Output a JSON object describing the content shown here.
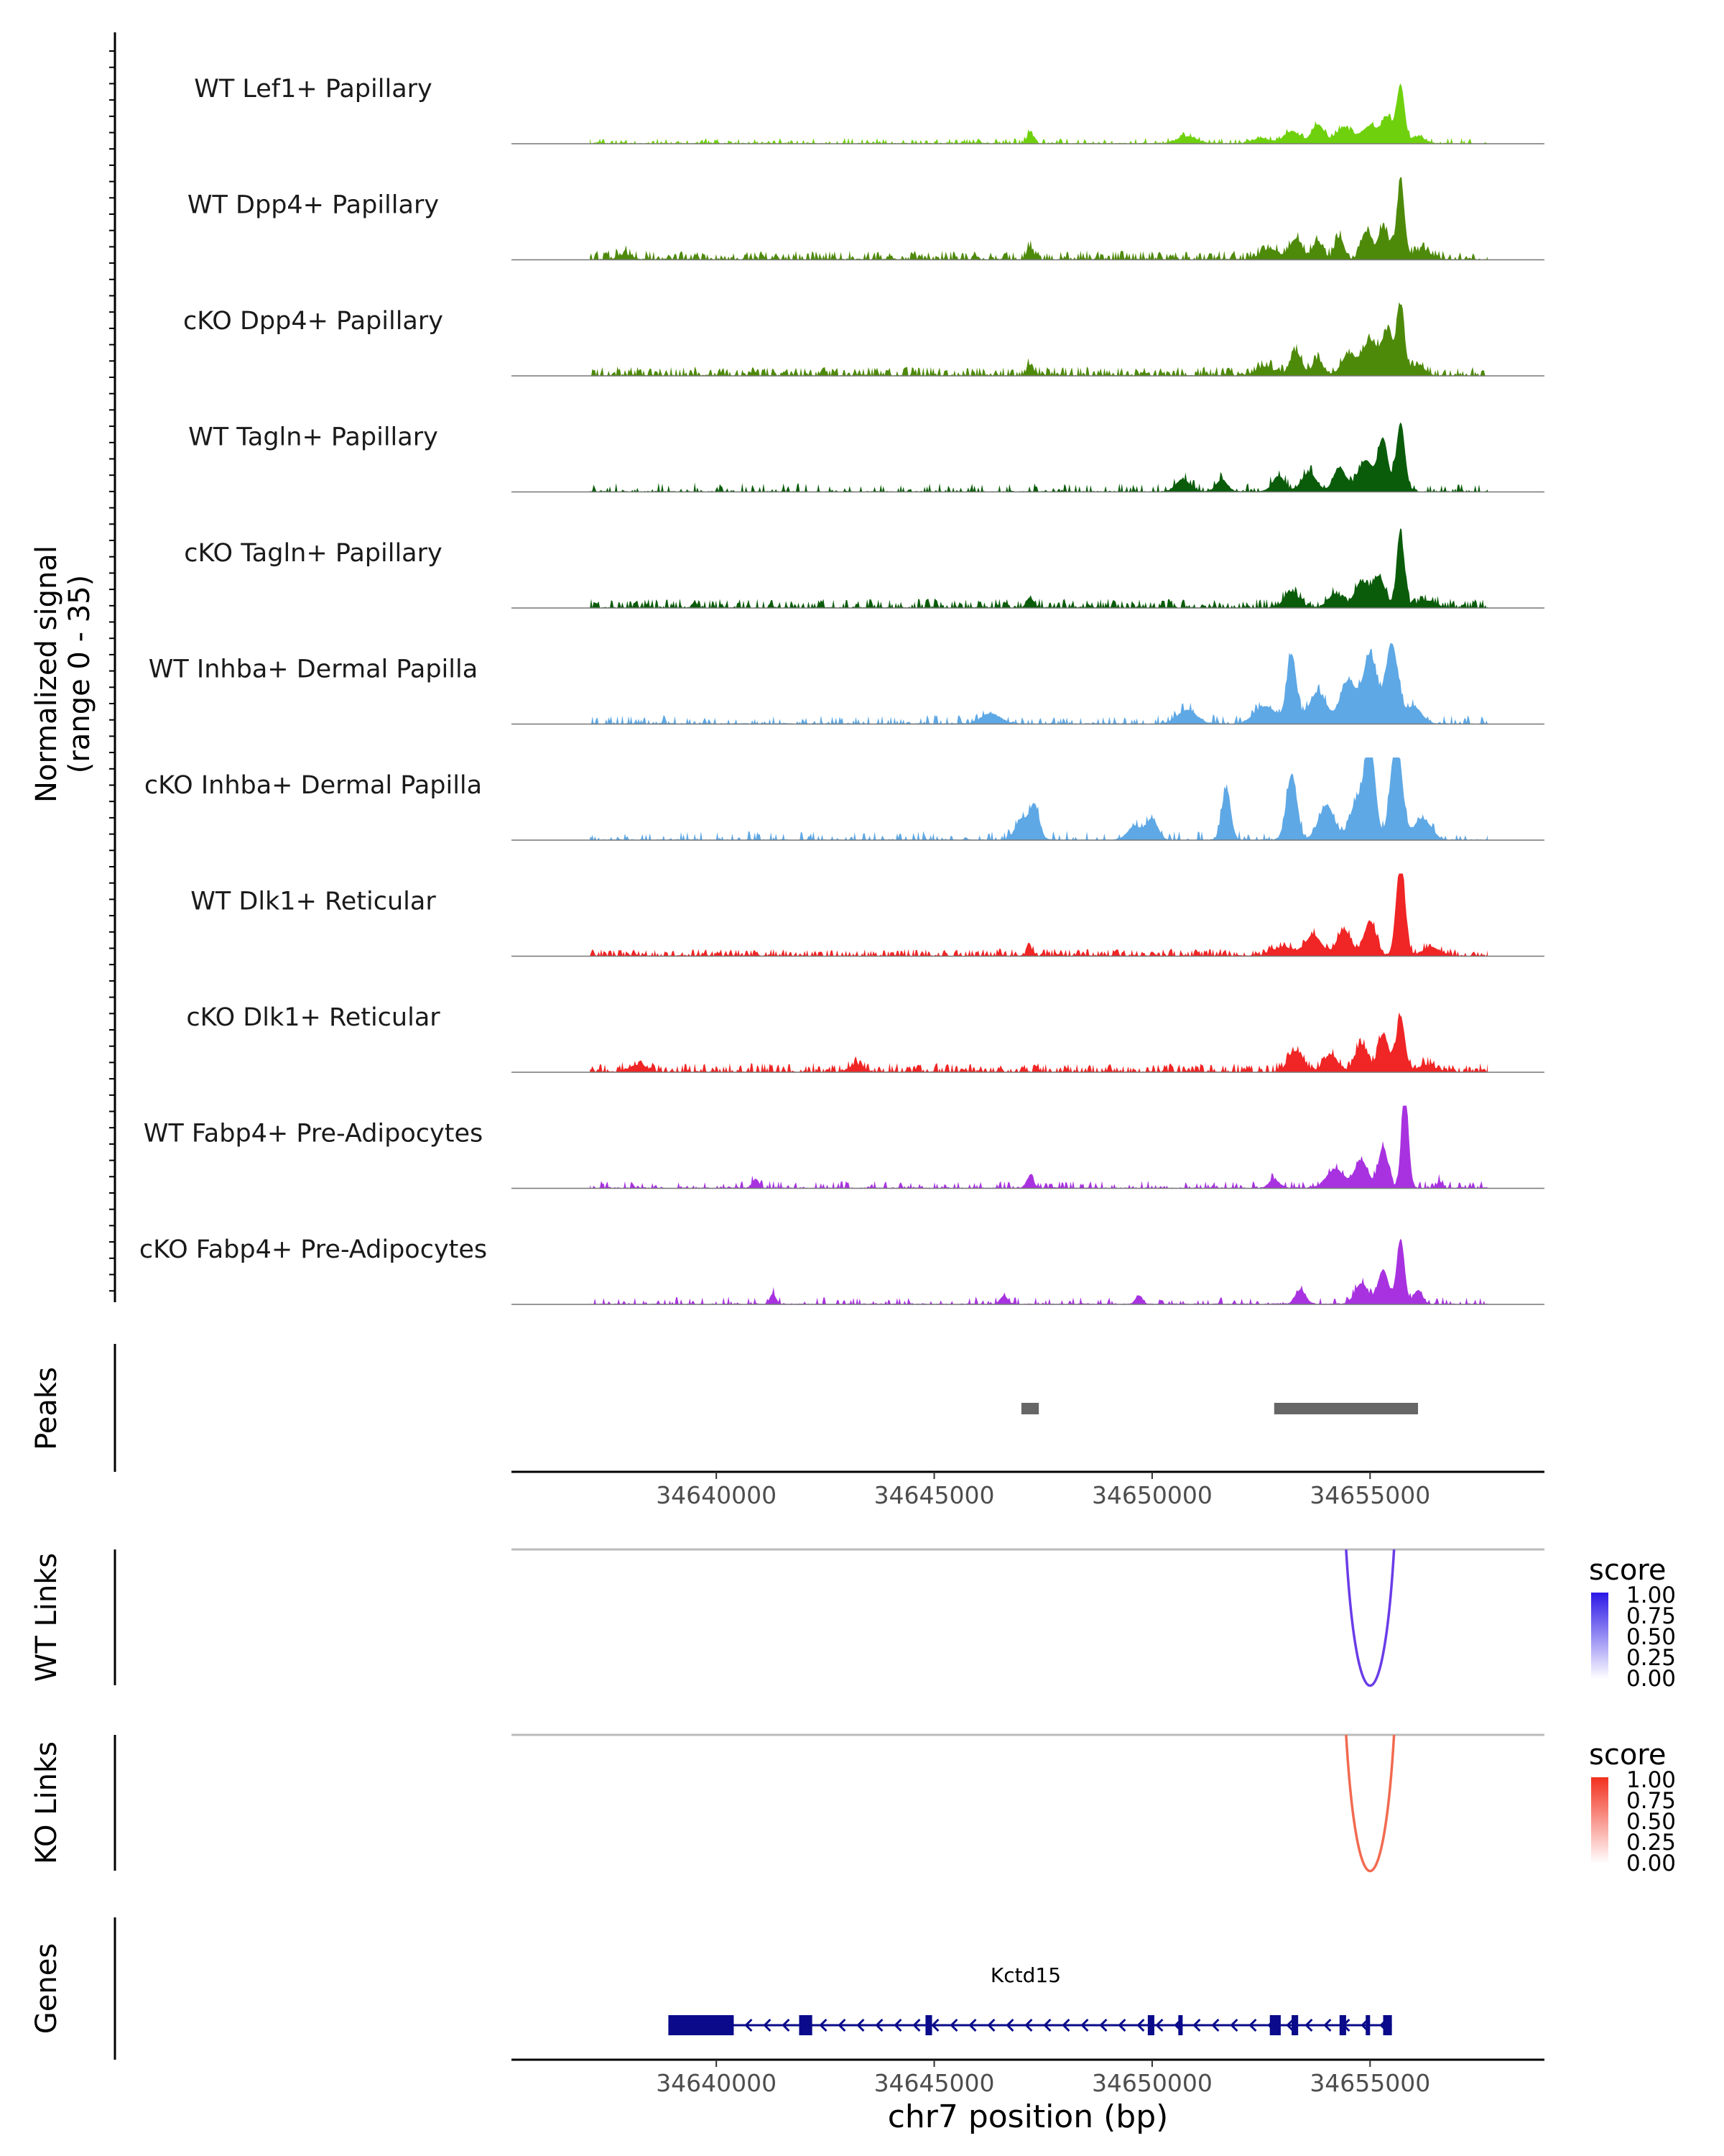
{
  "chart_data": {
    "type": "area",
    "title": "",
    "region": {
      "chrom": "chr7",
      "start": 34635300,
      "end": 34659000
    },
    "coverage_ylabel": "Normalized signal",
    "coverage_range_label": "(range 0 - 35)",
    "coverage_ylim": [
      0,
      35
    ],
    "tracks": [
      {
        "name": "WT Lef1+ Papillary",
        "color": "#6FD10D",
        "noise": 0.35,
        "base": 3,
        "peaks": [
          [
            34647200,
            7,
            70
          ],
          [
            34650800,
            4,
            220
          ],
          [
            34652500,
            3,
            200
          ],
          [
            34653200,
            7,
            180
          ],
          [
            34653800,
            11,
            140
          ],
          [
            34654400,
            9,
            180
          ],
          [
            34655000,
            10,
            200
          ],
          [
            34655400,
            14,
            120
          ],
          [
            34655700,
            34,
            90
          ],
          [
            34656100,
            4,
            150
          ]
        ]
      },
      {
        "name": "WT Dpp4+ Papillary",
        "color": "#4E8A0A",
        "noise": 0.6,
        "base": 5,
        "peaks": [
          [
            34637900,
            3,
            150
          ],
          [
            34647200,
            7,
            70
          ],
          [
            34652700,
            6,
            200
          ],
          [
            34653300,
            12,
            140
          ],
          [
            34653800,
            10,
            120
          ],
          [
            34654300,
            13,
            100
          ],
          [
            34654900,
            16,
            110
          ],
          [
            34655300,
            18,
            130
          ],
          [
            34655700,
            44,
            90
          ],
          [
            34656200,
            5,
            200
          ]
        ]
      },
      {
        "name": "cKO Dpp4+ Papillary",
        "color": "#4E8A0A",
        "noise": 0.6,
        "base": 5,
        "peaks": [
          [
            34647200,
            6,
            70
          ],
          [
            34652600,
            5,
            200
          ],
          [
            34653300,
            14,
            130
          ],
          [
            34653800,
            9,
            120
          ],
          [
            34654500,
            12,
            160
          ],
          [
            34655000,
            20,
            180
          ],
          [
            34655400,
            24,
            120
          ],
          [
            34655700,
            40,
            90
          ],
          [
            34656100,
            6,
            150
          ]
        ]
      },
      {
        "name": "WT Tagln+ Papillary",
        "color": "#0A5C0A",
        "noise": 0.3,
        "base": 5,
        "peaks": [
          [
            34650700,
            7,
            160
          ],
          [
            34651600,
            7,
            130
          ],
          [
            34652900,
            9,
            140
          ],
          [
            34653600,
            11,
            170
          ],
          [
            34654300,
            14,
            140
          ],
          [
            34654900,
            18,
            180
          ],
          [
            34655300,
            30,
            110
          ],
          [
            34655700,
            40,
            100
          ],
          [
            34657800,
            4,
            60
          ]
        ]
      },
      {
        "name": "cKO Tagln+ Papillary",
        "color": "#0A5C0A",
        "noise": 0.6,
        "base": 5,
        "peaks": [
          [
            34647200,
            6,
            80
          ],
          [
            34653200,
            9,
            170
          ],
          [
            34654200,
            8,
            160
          ],
          [
            34654800,
            15,
            150
          ],
          [
            34655200,
            18,
            140
          ],
          [
            34655700,
            42,
            90
          ],
          [
            34656300,
            4,
            200
          ]
        ]
      },
      {
        "name": "WT Inhba+ Dermal Papilla",
        "color": "#5EA8E5",
        "noise": 0.35,
        "base": 5,
        "peaks": [
          [
            34646300,
            6,
            220
          ],
          [
            34650800,
            8,
            220
          ],
          [
            34652600,
            10,
            250
          ],
          [
            34653200,
            40,
            110
          ],
          [
            34653800,
            18,
            200
          ],
          [
            34654500,
            25,
            180
          ],
          [
            34655000,
            40,
            160
          ],
          [
            34655500,
            46,
            140
          ],
          [
            34656000,
            10,
            180
          ]
        ]
      },
      {
        "name": "cKO Inhba+ Dermal Papilla",
        "color": "#5EA8E5",
        "noise": 0.3,
        "base": 5,
        "peaks": [
          [
            34647000,
            12,
            140
          ],
          [
            34647300,
            20,
            110
          ],
          [
            34649600,
            8,
            160
          ],
          [
            34650000,
            12,
            130
          ],
          [
            34651700,
            30,
            100
          ],
          [
            34653200,
            38,
            120
          ],
          [
            34654000,
            20,
            180
          ],
          [
            34654700,
            22,
            160
          ],
          [
            34655000,
            55,
            120
          ],
          [
            34655600,
            60,
            130
          ],
          [
            34656200,
            12,
            200
          ]
        ]
      },
      {
        "name": "WT Dlk1+ Reticular",
        "color": "#F02525",
        "noise": 0.6,
        "base": 4,
        "peaks": [
          [
            34647200,
            4,
            80
          ],
          [
            34653000,
            5,
            250
          ],
          [
            34653700,
            12,
            180
          ],
          [
            34654400,
            15,
            160
          ],
          [
            34655000,
            20,
            140
          ],
          [
            34655700,
            56,
            100
          ],
          [
            34656400,
            5,
            200
          ]
        ]
      },
      {
        "name": "cKO Dlk1+ Reticular",
        "color": "#F02525",
        "noise": 0.6,
        "base": 5,
        "peaks": [
          [
            34638200,
            4,
            200
          ],
          [
            34643200,
            4,
            150
          ],
          [
            34653300,
            12,
            170
          ],
          [
            34654100,
            10,
            160
          ],
          [
            34654800,
            16,
            140
          ],
          [
            34655300,
            22,
            120
          ],
          [
            34655700,
            32,
            100
          ],
          [
            34656300,
            4,
            200
          ]
        ]
      },
      {
        "name": "WT Fabp4+ Pre-Adipocytes",
        "color": "#A832E0",
        "noise": 0.3,
        "base": 4,
        "peaks": [
          [
            34640900,
            5,
            80
          ],
          [
            34647200,
            7,
            80
          ],
          [
            34652800,
            5,
            120
          ],
          [
            34654200,
            11,
            200
          ],
          [
            34654800,
            16,
            150
          ],
          [
            34655300,
            24,
            110
          ],
          [
            34655800,
            58,
            80
          ],
          [
            34656600,
            4,
            60
          ]
        ]
      },
      {
        "name": "cKO Fabp4+ Pre-Adipocytes",
        "color": "#A832E0",
        "noise": 0.25,
        "base": 4,
        "peaks": [
          [
            34641300,
            6,
            70
          ],
          [
            34646600,
            5,
            80
          ],
          [
            34649700,
            5,
            80
          ],
          [
            34653400,
            8,
            120
          ],
          [
            34654800,
            12,
            150
          ],
          [
            34655300,
            20,
            120
          ],
          [
            34655700,
            38,
            90
          ],
          [
            34656100,
            8,
            100
          ]
        ]
      }
    ],
    "peaks_track": {
      "label": "Peaks",
      "intervals": [
        [
          34647000,
          34647400
        ],
        [
          34652800,
          34656100
        ]
      ]
    },
    "axis_ticks": [
      34640000,
      34645000,
      34650000,
      34655000
    ],
    "tick_labels": [
      "34640000",
      "34645000",
      "34650000",
      "34655000"
    ],
    "links": [
      {
        "label": "WT Links",
        "start": 34654450,
        "end": 34655550,
        "score": 0.7,
        "color": "#6A3CE8",
        "legend_title": "score",
        "legend_low": "#FFFFFF",
        "legend_high": "#2A17E6",
        "legend_values": [
          "1.00",
          "0.75",
          "0.50",
          "0.25",
          "0.00"
        ]
      },
      {
        "label": "KO Links",
        "start": 34654450,
        "end": 34655550,
        "score": 0.6,
        "color": "#F26A50",
        "legend_title": "score",
        "legend_low": "#FFFFFF",
        "legend_high": "#F2301E",
        "legend_values": [
          "1.00",
          "0.75",
          "0.50",
          "0.25",
          "0.00"
        ]
      }
    ],
    "genes": {
      "label": "Genes",
      "gene_name": "Kctd15",
      "strand": "-",
      "start": 34638900,
      "end": 34655500,
      "color": "#0A0A8A",
      "exons": [
        [
          34638900,
          34640400
        ],
        [
          34641900,
          34642200
        ],
        [
          34644800,
          34644950
        ],
        [
          34649900,
          34650050
        ],
        [
          34650600,
          34650700
        ],
        [
          34652700,
          34652950
        ],
        [
          34653200,
          34653350
        ],
        [
          34654300,
          34654450
        ],
        [
          34654900,
          34655000
        ],
        [
          34655300,
          34655500
        ]
      ]
    },
    "xlabel": "chr7 position (bp)"
  }
}
